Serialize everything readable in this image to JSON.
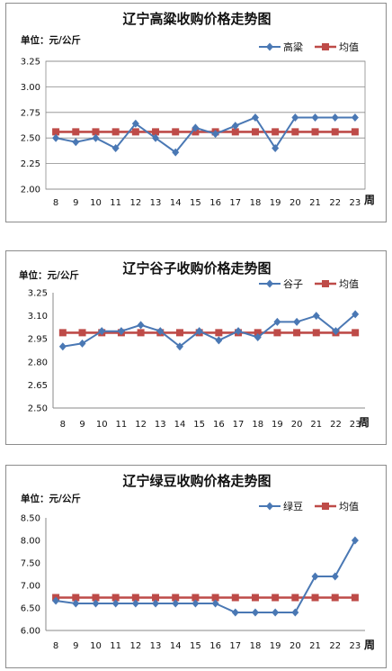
{
  "chart_data": [
    {
      "type": "line",
      "title": "辽宁高粱收购价格走势图",
      "unit_label": "单位：元/公斤",
      "xlabel": "周",
      "x": [
        "8",
        "9",
        "10",
        "11",
        "12",
        "13",
        "14",
        "15",
        "16",
        "17",
        "18",
        "19",
        "20",
        "21",
        "22",
        "23"
      ],
      "ylim": [
        2.0,
        3.25
      ],
      "yticks": [
        "2.00",
        "2.25",
        "2.50",
        "2.75",
        "3.00",
        "3.25"
      ],
      "grid": true,
      "legend_position": "top-right",
      "series": [
        {
          "name": "高粱",
          "color": "#4a78b4",
          "marker": "diamond",
          "values": [
            2.5,
            2.46,
            2.5,
            2.4,
            2.64,
            2.5,
            2.36,
            2.6,
            2.54,
            2.62,
            2.7,
            2.4,
            2.7,
            2.7,
            2.7,
            2.7
          ]
        },
        {
          "name": "均值",
          "color": "#be4b48",
          "marker": "square",
          "values": [
            2.56,
            2.56,
            2.56,
            2.56,
            2.56,
            2.56,
            2.56,
            2.56,
            2.56,
            2.56,
            2.56,
            2.56,
            2.56,
            2.56,
            2.56,
            2.56
          ]
        }
      ]
    },
    {
      "type": "line",
      "title": "辽宁谷子收购价格走势图",
      "unit_label": "单位：元/公斤",
      "xlabel": "周",
      "x": [
        "8",
        "9",
        "10",
        "11",
        "12",
        "13",
        "14",
        "15",
        "16",
        "17",
        "18",
        "19",
        "20",
        "21",
        "22",
        "23"
      ],
      "ylim": [
        2.5,
        3.25
      ],
      "yticks": [
        "2.50",
        "2.65",
        "2.80",
        "2.95",
        "3.10",
        "3.25"
      ],
      "grid": false,
      "legend_position": "top-right",
      "series": [
        {
          "name": "谷子",
          "color": "#4a78b4",
          "marker": "diamond",
          "values": [
            2.9,
            2.92,
            3.0,
            3.0,
            3.04,
            3.0,
            2.9,
            3.0,
            2.94,
            3.0,
            2.96,
            3.06,
            3.06,
            3.1,
            3.0,
            3.11
          ]
        },
        {
          "name": "均值",
          "color": "#be4b48",
          "marker": "square",
          "values": [
            2.99,
            2.99,
            2.99,
            2.99,
            2.99,
            2.99,
            2.99,
            2.99,
            2.99,
            2.99,
            2.99,
            2.99,
            2.99,
            2.99,
            2.99,
            2.99
          ]
        }
      ]
    },
    {
      "type": "line",
      "title": "辽宁绿豆收购价格走势图",
      "unit_label": "单位：元/公斤",
      "xlabel": "周",
      "x": [
        "8",
        "9",
        "10",
        "11",
        "12",
        "13",
        "14",
        "15",
        "16",
        "17",
        "18",
        "19",
        "20",
        "21",
        "22",
        "23"
      ],
      "ylim": [
        6.0,
        8.5
      ],
      "yticks": [
        "6.00",
        "6.50",
        "7.00",
        "7.50",
        "8.00",
        "8.50"
      ],
      "grid": false,
      "legend_position": "top-right",
      "series": [
        {
          "name": "绿豆",
          "color": "#4a78b4",
          "marker": "diamond",
          "values": [
            6.66,
            6.6,
            6.6,
            6.6,
            6.6,
            6.6,
            6.6,
            6.6,
            6.6,
            6.4,
            6.4,
            6.4,
            6.4,
            7.2,
            7.2,
            8.0
          ]
        },
        {
          "name": "均值",
          "color": "#be4b48",
          "marker": "square",
          "values": [
            6.73,
            6.73,
            6.73,
            6.73,
            6.73,
            6.73,
            6.73,
            6.73,
            6.73,
            6.73,
            6.73,
            6.73,
            6.73,
            6.73,
            6.73,
            6.73
          ]
        }
      ]
    }
  ]
}
